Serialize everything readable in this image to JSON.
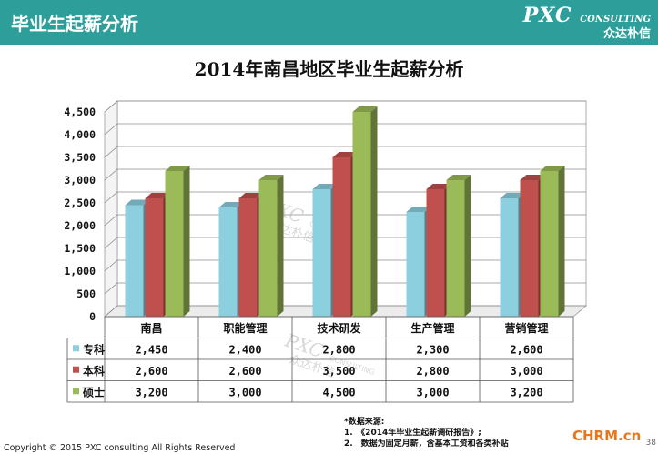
{
  "header": {
    "title": "毕业生起薪分析",
    "logo_main": "PXC",
    "logo_sub": "CONSULTING",
    "logo_cn": "众达朴信"
  },
  "chart_data": {
    "type": "bar",
    "title": "2014年南昌地区毕业生起薪分析",
    "categories": [
      "南昌",
      "职能管理",
      "技术研发",
      "生产管理",
      "营销管理"
    ],
    "series": [
      {
        "name": "专科",
        "values": [
          2450,
          2400,
          2800,
          2300,
          2600
        ],
        "color": "#8ccfdf",
        "labels": [
          "2,450",
          "2,400",
          "2,800",
          "2,300",
          "2,600"
        ]
      },
      {
        "name": "本科",
        "values": [
          2600,
          2600,
          3500,
          2800,
          3000
        ],
        "color": "#c0504d",
        "labels": [
          "2,600",
          "2,600",
          "3,500",
          "2,800",
          "3,000"
        ]
      },
      {
        "name": "硕士",
        "values": [
          3200,
          3000,
          4500,
          3000,
          3200
        ],
        "color": "#9bbb59",
        "labels": [
          "3,200",
          "3,000",
          "4,500",
          "3,000",
          "3,200"
        ]
      }
    ],
    "yticks": [
      "0",
      "500",
      "1,000",
      "1,500",
      "2,000",
      "2,500",
      "3,000",
      "3,500",
      "4,000",
      "4,500"
    ],
    "ylim": [
      0,
      4500
    ],
    "grid": true,
    "legend": "data-table"
  },
  "watermark": {
    "main": "PXC",
    "sub": "CONSULTING",
    "cn": "众达朴信"
  },
  "source": {
    "heading": "*数据来源:",
    "line1": "1.　《2014年毕业生起薪调研报告》;",
    "line2": "2.　数据为固定月薪，含基本工资和各类补贴"
  },
  "footer": {
    "copyright": "Copyright © 2015  PXC consulting All Rights Reserved",
    "brand": "CHRM.cn",
    "page": "38"
  }
}
